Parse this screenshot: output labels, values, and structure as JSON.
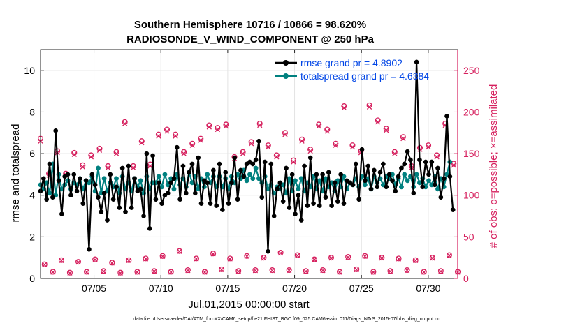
{
  "chart_data": {
    "type": "line",
    "title_line1": "Southern Hemisphere 10716 / 10866 = 98.620%",
    "title_line2": "RADIOSONDE_V_WIND_COMPONENT @ 250 hPa",
    "xlabel": "Jul.01,2015 00:00:00 start",
    "ylabel_left": "rmse and totalspread",
    "ylabel_right": "# of obs: o=possible; ×=assimilated",
    "footer": "data file: /Users/raeder/DAI/ATM_forcXX/CAM6_setup/f.e21.FHIST_BGC.f09_025.CAM6assim.011/Diags_NTrS_2015-07/obs_diag_output.nc",
    "xlim": [
      1,
      32.2
    ],
    "ylim_left": [
      0,
      11
    ],
    "ylim_right": [
      0,
      275
    ],
    "x_ticks": [
      5,
      10,
      15,
      20,
      25,
      30
    ],
    "x_tick_labels": [
      "07/05",
      "07/10",
      "07/15",
      "07/20",
      "07/25",
      "07/30"
    ],
    "y_left_ticks": [
      0,
      2,
      4,
      6,
      8,
      10
    ],
    "y_right_ticks": [
      0,
      50,
      100,
      150,
      200,
      250
    ],
    "colors": {
      "rmse": "#000000",
      "spread": "#00807f",
      "obs": "#d6205e",
      "legend_text": "#0045e6"
    },
    "legend": [
      {
        "name": "rmse",
        "label": "rmse grand pr = 4.8902"
      },
      {
        "name": "spread",
        "label": "totalspread grand pr = 4.6384"
      }
    ],
    "series": [
      {
        "name": "rmse",
        "values": [
          4.2,
          4.8,
          3.8,
          5.5,
          3.9,
          7.1,
          4.7,
          3.1,
          4.9,
          5.0,
          4.0,
          5.0,
          4.2,
          4.8,
          3.6,
          4.7,
          1.4,
          5.0,
          4.5,
          3.9,
          3.2,
          4.1,
          2.8,
          5.0,
          3.8,
          4.4,
          3.4,
          5.3,
          3.2,
          5.4,
          3.4,
          4.8,
          4.2,
          4.3,
          3.0,
          6.0,
          2.4,
          5.9,
          3.8,
          4.6,
          3.6,
          4.0,
          4.1,
          4.6,
          4.8,
          6.3,
          3.8,
          5.4,
          4.1,
          5.1,
          5.5,
          4.1,
          5.8,
          3.6,
          4.7,
          4.6,
          3.6,
          5.2,
          3.5,
          5.5,
          3.3,
          5.1,
          3.6,
          4.6,
          5.8,
          3.8,
          5.2,
          4.9,
          5.5,
          5.6,
          5.5,
          5.7,
          6.6,
          3.9,
          5.6,
          1.3,
          5.5,
          3.0,
          4.3,
          4.6,
          3.7,
          5.3,
          3.4,
          5.0,
          3.1,
          4.0,
          2.8,
          5.4,
          3.5,
          5.8,
          3.6,
          5.0,
          3.5,
          5.0,
          3.9,
          5.1,
          3.5,
          4.6,
          3.7,
          5.0,
          3.6,
          4.7,
          4.6,
          4.5,
          5.5,
          3.8,
          6.2,
          4.7,
          5.4,
          4.3,
          5.2,
          4.4,
          5.1,
          5.5,
          4.4,
          5.0,
          4.7,
          4.2,
          4.9,
          5.3,
          5.5,
          6.1,
          5.7,
          4.1,
          10.4,
          5.7,
          4.4,
          5.6,
          5.0,
          5.6,
          4.5,
          5.3,
          3.9,
          4.8,
          7.8,
          4.9,
          3.3
        ]
      },
      {
        "name": "spread",
        "values": [
          4.5,
          4.3,
          4.6,
          4.1,
          5.5,
          4.0,
          5.0,
          4.3,
          4.5,
          4.7,
          4.3,
          4.6,
          4.5,
          4.8,
          4.3,
          4.7,
          4.6,
          4.9,
          4.2,
          5.3,
          4.1,
          4.8,
          4.2,
          4.6,
          4.4,
          4.8,
          4.1,
          4.9,
          4.3,
          4.6,
          4.2,
          4.8,
          4.4,
          4.7,
          4.1,
          4.9,
          4.3,
          4.6,
          4.6,
          4.9,
          4.4,
          5.0,
          4.5,
          4.8,
          4.3,
          5.0,
          4.5,
          4.8,
          4.4,
          5.1,
          4.6,
          4.9,
          4.3,
          4.8,
          4.4,
          5.0,
          4.6,
          4.9,
          4.4,
          4.9,
          4.4,
          4.8,
          4.3,
          4.9,
          4.6,
          5.0,
          4.8,
          5.2,
          4.7,
          5.0,
          4.8,
          5.3,
          4.8,
          4.6,
          4.9,
          4.3,
          4.5,
          4.1,
          4.4,
          4.3,
          4.5,
          4.1,
          4.8,
          4.2,
          4.7,
          4.3,
          4.8,
          4.2,
          4.6,
          4.4,
          4.9,
          4.3,
          4.7,
          4.2,
          4.8,
          4.4,
          4.6,
          4.2,
          4.7,
          4.4,
          4.9,
          4.3,
          4.6,
          4.5,
          4.8,
          4.4,
          4.9,
          4.5,
          4.8,
          4.3,
          4.9,
          4.6,
          4.8,
          4.5,
          4.9,
          4.8,
          5.0,
          4.5,
          4.8,
          4.4,
          5.0,
          4.7,
          4.9,
          4.4,
          5.0,
          4.6,
          4.8,
          4.4,
          4.7,
          4.5,
          4.9,
          4.3,
          4.8,
          4.4,
          5.0,
          5.6,
          null
        ]
      },
      {
        "name": "obs_possible_synoptic",
        "values": [
          168,
          126,
          153,
          126,
          151,
          136,
          148,
          156,
          135,
          152,
          188,
          135,
          165,
          137,
          173,
          179,
          173,
          152,
          162,
          168,
          184,
          181,
          185,
          146,
          152,
          164,
          186,
          160,
          148,
          175,
          142,
          167,
          155,
          185,
          179,
          162,
          207,
          160,
          153,
          208,
          190,
          180,
          152,
          170,
          135,
          157,
          160,
          148,
          186,
          138
        ]
      },
      {
        "name": "obs_assimilated_synoptic",
        "values": [
          165,
          124,
          151,
          125,
          149,
          134,
          146,
          154,
          133,
          150,
          186,
          133,
          163,
          135,
          171,
          177,
          171,
          150,
          160,
          166,
          182,
          179,
          183,
          144,
          150,
          162,
          184,
          158,
          146,
          173,
          140,
          165,
          153,
          183,
          177,
          160,
          205,
          158,
          151,
          206,
          188,
          178,
          150,
          168,
          133,
          155,
          158,
          146,
          184,
          136
        ]
      },
      {
        "name": "obs_possible_offhour",
        "values": [
          17,
          8,
          22,
          7,
          20,
          8,
          23,
          9,
          19,
          7,
          22,
          8,
          24,
          9,
          27,
          8,
          33,
          10,
          24,
          8,
          30,
          11,
          24,
          9,
          27,
          10,
          25,
          10,
          31,
          10,
          28,
          9,
          23,
          10,
          25,
          8,
          26,
          11,
          27,
          8,
          25,
          9,
          24,
          10,
          22,
          8,
          25,
          9,
          28,
          8
        ]
      }
    ]
  }
}
